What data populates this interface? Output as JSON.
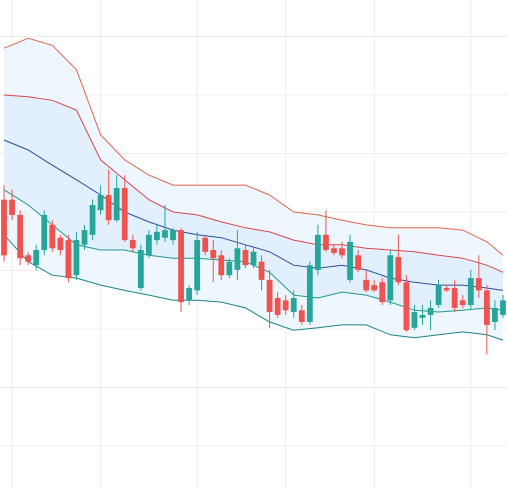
{
  "chart_data": {
    "type": "candlestick",
    "categories": [
      null,
      null,
      null,
      null,
      null,
      null,
      null,
      null,
      null,
      null,
      null,
      null,
      null,
      null,
      null,
      null,
      null,
      null,
      null,
      null,
      null,
      null,
      null,
      null,
      null,
      null,
      null,
      null,
      null,
      null,
      null,
      null,
      null,
      null,
      null,
      null,
      null,
      null,
      null,
      null,
      null,
      null,
      null,
      null,
      null,
      null,
      null,
      null,
      null,
      null,
      null,
      null,
      null,
      null,
      null,
      null,
      null,
      null,
      null,
      null,
      null,
      null,
      null
    ],
    "open": [
      52.1,
      52.1,
      49.5,
      42.6,
      40.9,
      43.5,
      47.8,
      45.6,
      45.2,
      39.2,
      44.4,
      46.1,
      50.3,
      52.9,
      48.6,
      54.1,
      45.2,
      37.0,
      42.6,
      45.2,
      45.6,
      45.2,
      46.9,
      34.9,
      36.6,
      45.6,
      43.5,
      42.6,
      39.2,
      40.1,
      43.5,
      40.9,
      41.5,
      38.4,
      35.3,
      34.9,
      32.9,
      33.2,
      31.2,
      40.1,
      46.1,
      43.8,
      43.8,
      38.4,
      42.6,
      38.4,
      37.5,
      38.0,
      34.9,
      42.3,
      38.0,
      30.2,
      31.9,
      32.4,
      34.1,
      37.0,
      37.0,
      34.9,
      34.1,
      38.7,
      36.6,
      31.2,
      32.4
    ],
    "high": [
      54.6,
      53.8,
      50.3,
      43.2,
      44.4,
      50.3,
      48.6,
      46.1,
      46.1,
      46.6,
      47.8,
      52.1,
      54.6,
      57.2,
      56.3,
      56.3,
      46.1,
      44.4,
      46.9,
      47.8,
      51.2,
      47.3,
      47.3,
      37.5,
      46.6,
      46.1,
      45.2,
      43.5,
      42.1,
      46.9,
      44.4,
      43.8,
      42.6,
      40.1,
      36.3,
      35.8,
      36.6,
      34.1,
      41.5,
      47.8,
      50.3,
      44.4,
      44.9,
      46.1,
      43.5,
      40.1,
      38.4,
      38.7,
      43.5,
      46.1,
      39.2,
      34.1,
      34.1,
      34.9,
      38.4,
      37.5,
      38.4,
      35.8,
      40.1,
      42.6,
      37.5,
      34.9,
      35.8
    ],
    "low": [
      41.5,
      48.6,
      40.9,
      40.9,
      40.1,
      42.6,
      43.2,
      42.6,
      38.0,
      38.4,
      43.5,
      45.2,
      49.5,
      47.8,
      48.3,
      44.9,
      43.2,
      36.6,
      42.1,
      44.4,
      44.9,
      44.4,
      32.9,
      34.1,
      35.8,
      42.6,
      38.0,
      38.4,
      38.7,
      38.4,
      40.4,
      40.4,
      36.6,
      30.2,
      31.9,
      32.4,
      31.9,
      30.7,
      30.7,
      39.2,
      43.2,
      42.6,
      42.1,
      38.0,
      39.7,
      36.3,
      36.3,
      34.1,
      34.1,
      37.5,
      29.5,
      29.8,
      30.7,
      29.8,
      33.6,
      36.3,
      32.9,
      33.6,
      33.2,
      35.3,
      25.6,
      29.8,
      31.9
    ],
    "close": [
      42.6,
      49.5,
      42.1,
      41.5,
      43.5,
      49.5,
      43.8,
      43.5,
      38.7,
      45.2,
      46.9,
      51.2,
      52.9,
      48.6,
      54.1,
      45.2,
      43.8,
      43.5,
      46.1,
      46.6,
      46.9,
      46.9,
      34.6,
      37.0,
      45.2,
      43.2,
      42.1,
      39.2,
      41.5,
      43.8,
      40.9,
      43.2,
      38.4,
      32.9,
      32.4,
      33.2,
      35.3,
      31.2,
      40.9,
      46.1,
      43.5,
      43.0,
      42.6,
      44.9,
      40.1,
      36.6,
      36.6,
      34.6,
      42.6,
      38.0,
      29.8,
      32.9,
      32.4,
      33.6,
      37.5,
      36.6,
      33.6,
      34.1,
      38.7,
      36.6,
      30.7,
      33.6,
      34.9
    ],
    "up_color": "#26a69a",
    "down_color": "#ef5350",
    "ylim": [
      2.82,
      86.24
    ],
    "yticks": [
      10,
      20,
      30,
      40,
      50,
      60,
      70,
      80
    ],
    "xticks": [
      1,
      12,
      24,
      35,
      46,
      58
    ],
    "grid": true,
    "bands": {
      "x": [
        0,
        3,
        6,
        9,
        12,
        15,
        18,
        21,
        24,
        27,
        30,
        33,
        36,
        39,
        42,
        45,
        48,
        51,
        54,
        57,
        60,
        62
      ],
      "fill": [
        "#eef6fe",
        "#e2effc"
      ],
      "series": [
        {
          "color": "#e0664f",
          "values": [
            78.0,
            79.7,
            78.5,
            74.3,
            63.2,
            58.9,
            56.3,
            54.6,
            54.6,
            54.6,
            54.6,
            52.9,
            50.0,
            49.5,
            48.6,
            47.8,
            47.3,
            47.3,
            47.3,
            46.9,
            44.9,
            42.6
          ]
        },
        {
          "color": "#d9474a",
          "values": [
            70.0,
            69.7,
            69.1,
            67.4,
            58.9,
            55.5,
            52.1,
            50.0,
            49.5,
            48.3,
            47.3,
            46.6,
            45.2,
            44.4,
            44.4,
            43.8,
            43.5,
            43.2,
            42.6,
            42.1,
            40.9,
            39.7
          ]
        },
        {
          "color": "#2b4f9e",
          "values": [
            62.3,
            60.6,
            58.0,
            55.5,
            52.9,
            50.0,
            48.3,
            46.9,
            46.1,
            45.6,
            44.4,
            43.2,
            40.9,
            40.4,
            40.9,
            40.1,
            38.7,
            38.0,
            37.5,
            37.5,
            37.0,
            36.6
          ]
        },
        {
          "color": "#1f9a89",
          "values": [
            53.8,
            51.2,
            47.8,
            44.4,
            43.5,
            43.5,
            42.6,
            42.1,
            42.1,
            41.8,
            41.5,
            39.7,
            35.8,
            35.3,
            36.3,
            35.8,
            34.6,
            33.2,
            32.9,
            33.2,
            33.6,
            33.2
          ]
        },
        {
          "color": "#1c8585",
          "values": [
            46.1,
            41.5,
            39.2,
            38.7,
            37.5,
            36.6,
            35.8,
            34.9,
            34.9,
            34.6,
            33.6,
            31.2,
            29.8,
            30.2,
            30.7,
            30.7,
            29.0,
            28.5,
            29.0,
            29.5,
            29.0,
            28.1
          ]
        }
      ]
    }
  }
}
